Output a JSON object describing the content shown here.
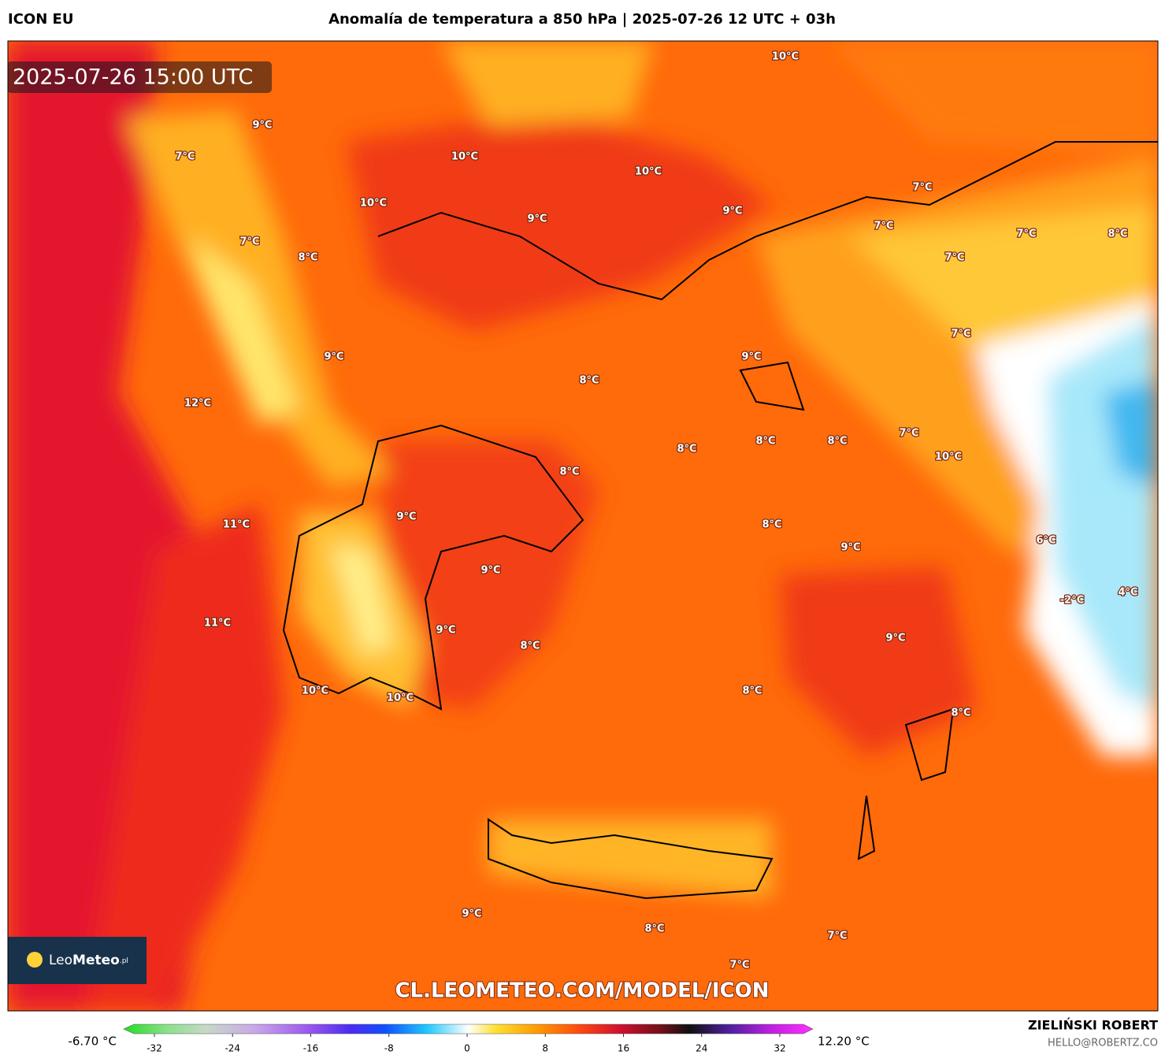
{
  "header": {
    "model": "ICON EU",
    "title": "Anomalía de temperatura a 850 hPa | 2025-07-26 12 UTC + 03h"
  },
  "map": {
    "timestamp": "2025-07-26 15:00 UTC",
    "labels": [
      "10°C",
      "9°C",
      "7°C",
      "10°C",
      "10°C",
      "10°C",
      "7°C",
      "9°C",
      "9°C",
      "7°C",
      "7°C",
      "8°C",
      "7°C",
      "8°C",
      "7°C",
      "7°C",
      "9°C",
      "9°C",
      "8°C",
      "12°C",
      "7°C",
      "8°C",
      "8°C",
      "8°C",
      "10°C",
      "8°C",
      "9°C",
      "11°C",
      "8°C",
      "6°C",
      "9°C",
      "9°C",
      "4°C",
      "-2°C",
      "9°C",
      "11°C",
      "9°C",
      "8°C",
      "10°C",
      "10°C",
      "8°C",
      "8°C",
      "9°C",
      "8°C",
      "7°C",
      "7°C"
    ],
    "watermark": "CL.LEOMETEO.COM/MODEL/ICON",
    "logo": {
      "light": "Leo",
      "bold": "Meteo",
      "suffix": ".pl"
    }
  },
  "colorbar": {
    "min_label": "-6.70 °C",
    "max_label": "12.20 °C",
    "ticks": [
      -32,
      -24,
      -16,
      -8,
      0,
      8,
      16,
      24,
      32
    ]
  },
  "credits": {
    "author": "ZIELIŃSKI ROBERT",
    "email": "HELLO@ROBERTZ.CO"
  }
}
